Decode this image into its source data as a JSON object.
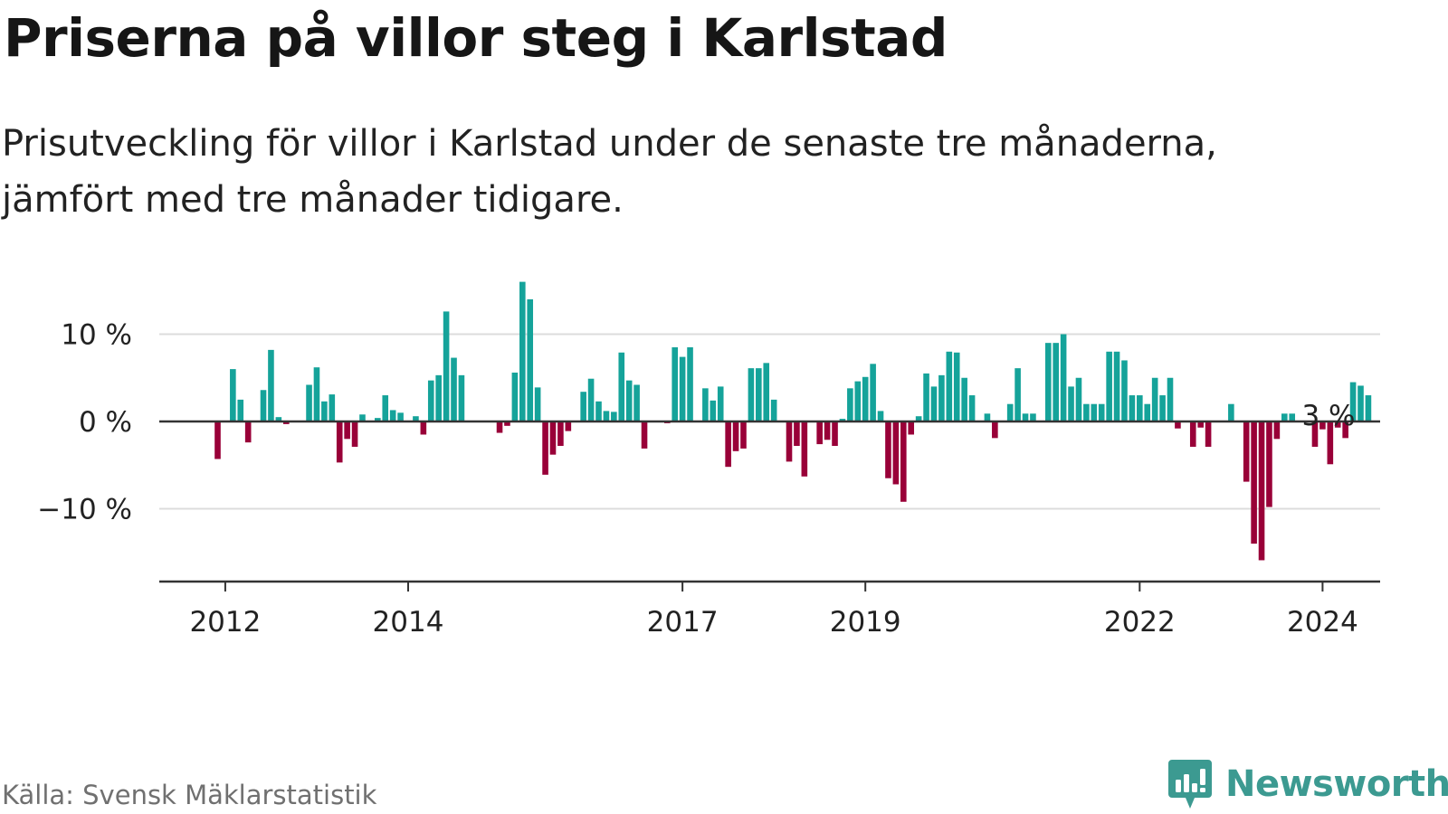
{
  "title": "Priserna på villor steg i Karlstad",
  "subtitle": "Prisutveckling för villor i Karlstad under de senaste tre månaderna, jämfört med tre månader tidigare.",
  "source": "Källa: Svensk Mäklarstatistik",
  "brand": {
    "name": "Newsworthy",
    "color": "#3c9a91",
    "icon": "newsworthy-logo-icon"
  },
  "colors": {
    "positive": "#15a39a",
    "negative": "#990038",
    "gridline": "#dcdcdc",
    "axis": "#333333"
  },
  "chart_data": {
    "type": "bar",
    "title": "Priserna på villor steg i Karlstad",
    "xlabel": "",
    "ylabel": "",
    "unit": "%",
    "ylim": [
      -18,
      12
    ],
    "yticks": [
      {
        "value": 10,
        "label": "10 %"
      },
      {
        "value": 0,
        "label": "0 %"
      },
      {
        "value": -10,
        "label": "−10 %"
      }
    ],
    "xticks": [
      {
        "year": 2012,
        "index": 8,
        "label": "2012"
      },
      {
        "year": 2014,
        "index": 32,
        "label": "2014"
      },
      {
        "year": 2017,
        "index": 68,
        "label": "2017"
      },
      {
        "year": 2019,
        "index": 92,
        "label": "2019"
      },
      {
        "year": 2022,
        "index": 128,
        "label": "2022"
      },
      {
        "year": 2024,
        "index": 152,
        "label": "2024"
      }
    ],
    "x_start": "2011-05",
    "frequency": "monthly",
    "annotation": {
      "index": 151,
      "text": "3 %"
    },
    "values": [
      0,
      0,
      0,
      0,
      0,
      0,
      0,
      -4.3,
      0,
      6,
      2.5,
      -2.4,
      0,
      3.6,
      8.2,
      0.5,
      -0.3,
      0,
      0,
      4.2,
      6.2,
      2.3,
      3.1,
      -4.7,
      -2,
      -2.9,
      0.8,
      0,
      0.4,
      3,
      1.3,
      1,
      0,
      0.6,
      -1.5,
      4.7,
      5.3,
      12.6,
      7.3,
      5.3,
      0,
      0,
      0,
      0,
      -1.3,
      -0.5,
      5.6,
      16,
      14,
      3.9,
      -6.1,
      -3.8,
      -2.8,
      -1.1,
      0,
      3.4,
      4.9,
      2.3,
      1.2,
      1.1,
      7.9,
      4.7,
      4.2,
      -3.1,
      0,
      0,
      -0.2,
      8.5,
      7.4,
      8.5,
      0,
      3.8,
      2.4,
      4,
      -5.2,
      -3.4,
      -3.1,
      6.1,
      6.1,
      6.7,
      2.5,
      0,
      -4.6,
      -2.8,
      -6.3,
      0,
      -2.6,
      -2.1,
      -2.8,
      0.3,
      3.8,
      4.6,
      5.1,
      6.6,
      1.2,
      -6.5,
      -7.2,
      -9.2,
      -1.5,
      0.6,
      5.5,
      4,
      5.3,
      8,
      7.9,
      5,
      3,
      0,
      0.9,
      -1.9,
      0,
      2,
      6.1,
      0.9,
      0.9,
      0,
      9,
      9,
      10,
      4,
      5,
      2,
      2,
      2,
      8,
      8,
      7,
      3,
      3,
      2,
      5,
      3,
      5,
      -0.8,
      0,
      -2.9,
      -0.7,
      -2.9,
      0,
      0,
      2,
      0,
      -6.9,
      -14,
      -15.9,
      -9.8,
      -2,
      0.9,
      0.9,
      0,
      0,
      -2.9,
      -0.9,
      -4.9,
      -0.7,
      -1.9,
      4.5,
      4.1,
      3
    ]
  }
}
